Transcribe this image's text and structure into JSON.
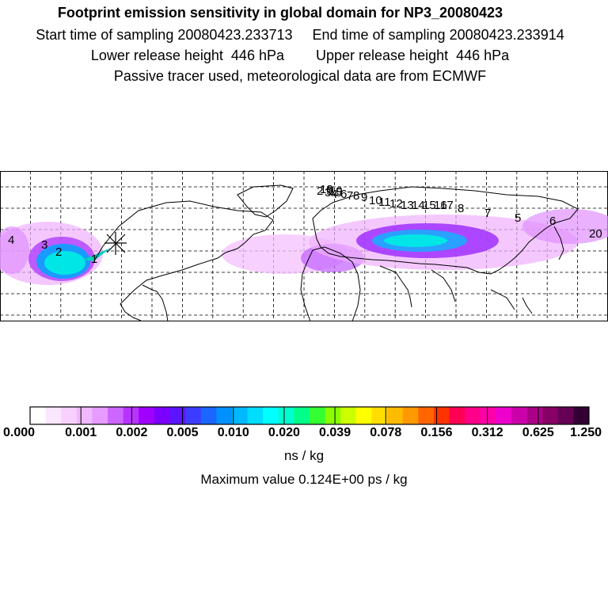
{
  "header": {
    "title": "Footprint emission sensitivity in global domain for NP3_20080423",
    "line2": "Start time of sampling 20080423.233713     End time of sampling 20080423.233914",
    "line3": "Lower release height  446 hPa        Upper release height  446 hPa",
    "line4": "Passive tracer used, meteorological data are from ECMWF"
  },
  "map": {
    "trajectory_labels": [
      "4",
      "3",
      "2",
      "1",
      "2",
      "3",
      "4",
      "5",
      "6",
      "7",
      "8",
      "9",
      "10",
      "11",
      "12",
      "13",
      "14",
      "15",
      "16",
      "17",
      "18",
      "19",
      "20",
      "6",
      "5",
      "7",
      "8",
      "9"
    ],
    "colors": {
      "plume_core": "#00e5e5",
      "plume_inner": "#20b0ff",
      "plume_mid": "#a020f0",
      "plume_outer": "#f0a0ff",
      "coast": "#000000",
      "grid": "#000000"
    }
  },
  "colorbar": {
    "colors": [
      "#ffffff",
      "#fbe6ff",
      "#f7d0ff",
      "#f0b8ff",
      "#e79bff",
      "#cd66ff",
      "#b833ff",
      "#a000ff",
      "#7c00ff",
      "#5a14ff",
      "#3c3cff",
      "#1a66ff",
      "#0090ff",
      "#00b8ff",
      "#00ddff",
      "#00ffff",
      "#00ffcc",
      "#00ff88",
      "#33ff33",
      "#88ff00",
      "#ccff00",
      "#ffff00",
      "#ffdd00",
      "#ffbb00",
      "#ff9900",
      "#ff6600",
      "#ff3300",
      "#ff0055",
      "#ff0088",
      "#ff00aa",
      "#ee00cc",
      "#cc00aa",
      "#aa0088",
      "#880066",
      "#660055",
      "#330033"
    ],
    "tick_labels": [
      "0.000",
      "0.001",
      "0.002",
      "0.005",
      "0.010",
      "0.020",
      "0.039",
      "0.078",
      "0.156",
      "0.312",
      "0.625",
      "1.250"
    ],
    "units": "ns / kg",
    "max_value": "Maximum value  0.124E+00 ps / kg"
  }
}
